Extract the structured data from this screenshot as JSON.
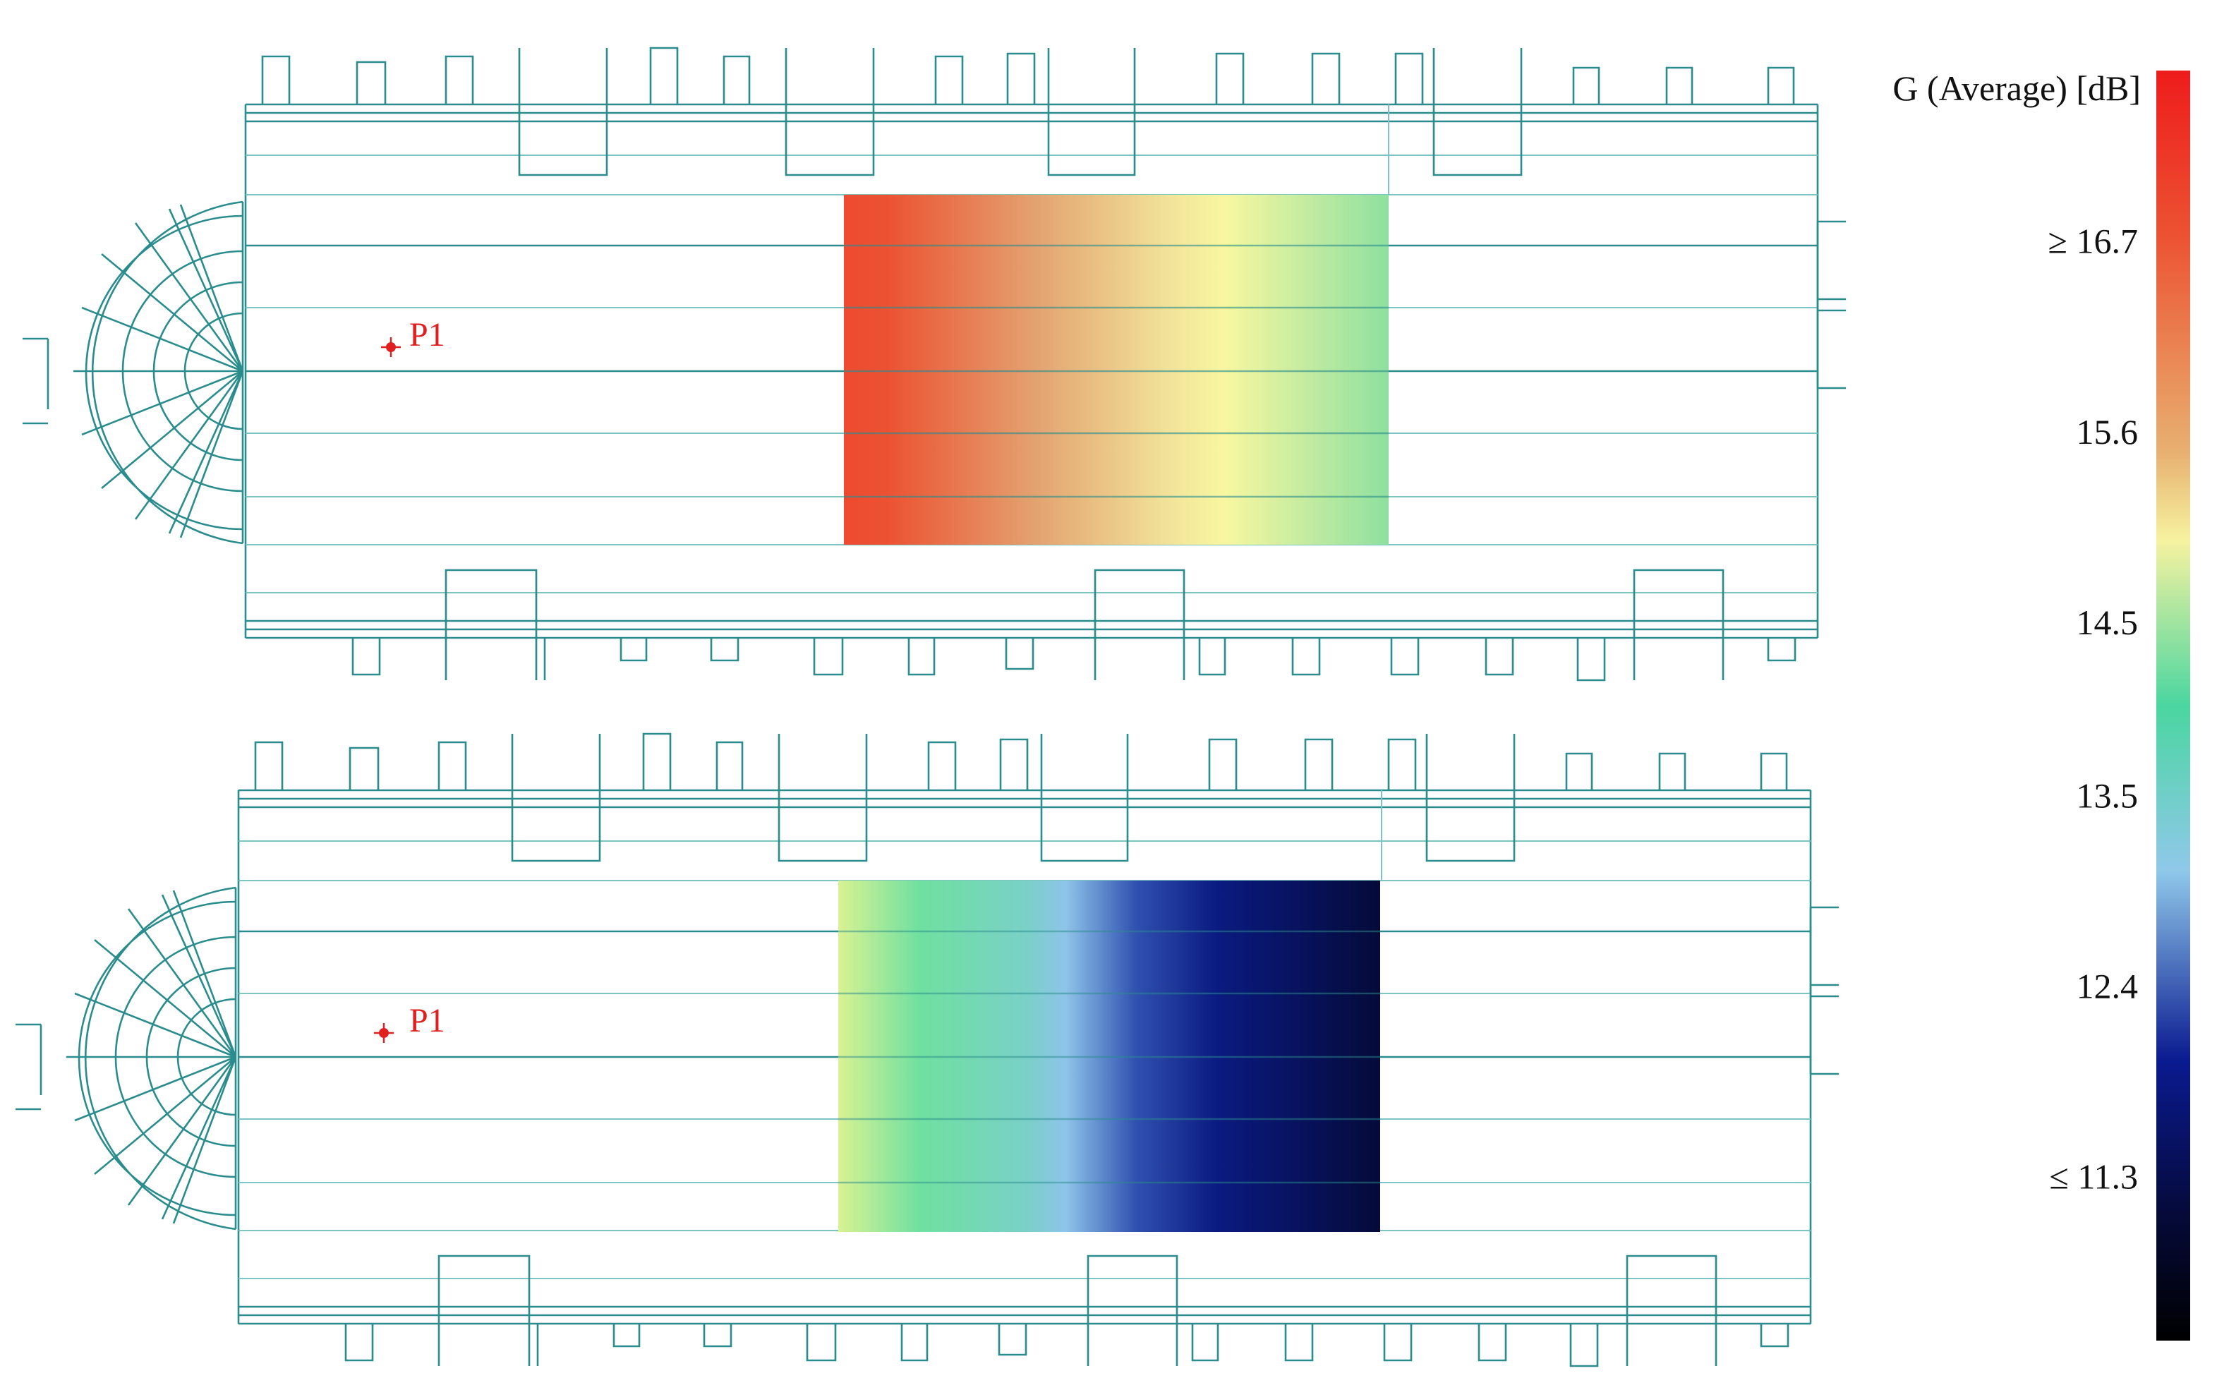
{
  "colorbar": {
    "title": "G (Average) [dB]",
    "lim": [
      10.35,
      17.68
    ],
    "ticks": [
      {
        "value": 16.7,
        "label": "≥ 16.7"
      },
      15.6,
      14.5,
      13.5,
      12.4,
      {
        "value": 11.3,
        "label": "≤ 11.3"
      }
    ]
  },
  "plans": [
    {
      "point_label": "P1"
    },
    {
      "point_label": "P1"
    }
  ]
}
